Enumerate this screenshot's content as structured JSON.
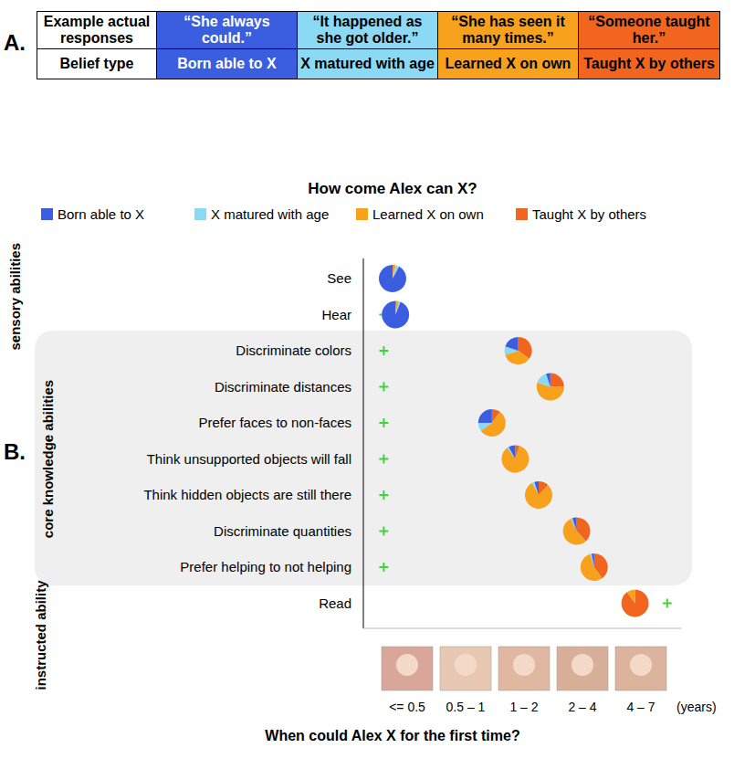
{
  "panels": [
    "A.",
    "B."
  ],
  "table": {
    "rows": [
      [
        "Example actual responses",
        "“She always could.”",
        "“It happened as she got older.”",
        "“She has seen it many times.”",
        "“Someone taught her.”"
      ],
      [
        "Belief type",
        "Born able to X",
        "X matured with age",
        "Learned X on own",
        "Taught X by others"
      ]
    ],
    "colors": [
      "#ffffff",
      "#3b5ee0",
      "#8cd9f5",
      "#f7a11c",
      "#f2651f"
    ]
  },
  "chart_data": {
    "type": "pie",
    "title": "How come Alex can X?",
    "xlabel": "When could Alex X for the first time?",
    "xunit": "(years)",
    "categories": [
      "See",
      "Hear",
      "Discriminate colors",
      "Discriminate distances",
      "Prefer faces to non-faces",
      "Think unsupported objects will fall",
      "Think hidden objects are still there",
      "Discriminate quantities",
      "Prefer helping to not helping",
      "Read"
    ],
    "groups": [
      {
        "label": "sensory abilities",
        "rows": [
          0,
          1
        ]
      },
      {
        "label": "core knowledge abilities",
        "rows": [
          2,
          8
        ]
      },
      {
        "label": "instructed ability",
        "rows": [
          9,
          9
        ]
      }
    ],
    "x": [
      -0.25,
      -0.2,
      1.9,
      2.45,
      1.45,
      1.85,
      2.25,
      2.9,
      3.2,
      3.9
    ],
    "plus_x": [
      -0.4,
      -0.4,
      -0.4,
      -0.4,
      -0.4,
      -0.4,
      -0.4,
      -0.4,
      -0.4,
      4.45
    ],
    "xlim": [
      -0.75,
      4.7
    ],
    "xticks": [
      {
        "value": 0,
        "label": "<= 0.5"
      },
      {
        "value": 1,
        "label": "0.5 – 1"
      },
      {
        "value": 2,
        "label": "1 – 2"
      },
      {
        "value": 3,
        "label": "2 – 4"
      },
      {
        "value": 4,
        "label": "4 – 7"
      }
    ],
    "series": [
      {
        "name": "Born able to X",
        "color": "#3b5ee0",
        "values": [
          92,
          94,
          20,
          5,
          25,
          8,
          5,
          5,
          3,
          0
        ]
      },
      {
        "name": "X matured with age",
        "color": "#8cd9f5",
        "values": [
          4,
          2,
          10,
          15,
          10,
          2,
          3,
          2,
          2,
          0
        ]
      },
      {
        "name": "Learned X on own",
        "color": "#f7a11c",
        "values": [
          3,
          3,
          35,
          55,
          55,
          85,
          80,
          55,
          55,
          10
        ]
      },
      {
        "name": "Taught X by others",
        "color": "#f2651f",
        "values": [
          1,
          1,
          35,
          25,
          10,
          5,
          12,
          38,
          40,
          90
        ]
      }
    ],
    "legend": "top",
    "plus_color": "#3fd43f"
  }
}
